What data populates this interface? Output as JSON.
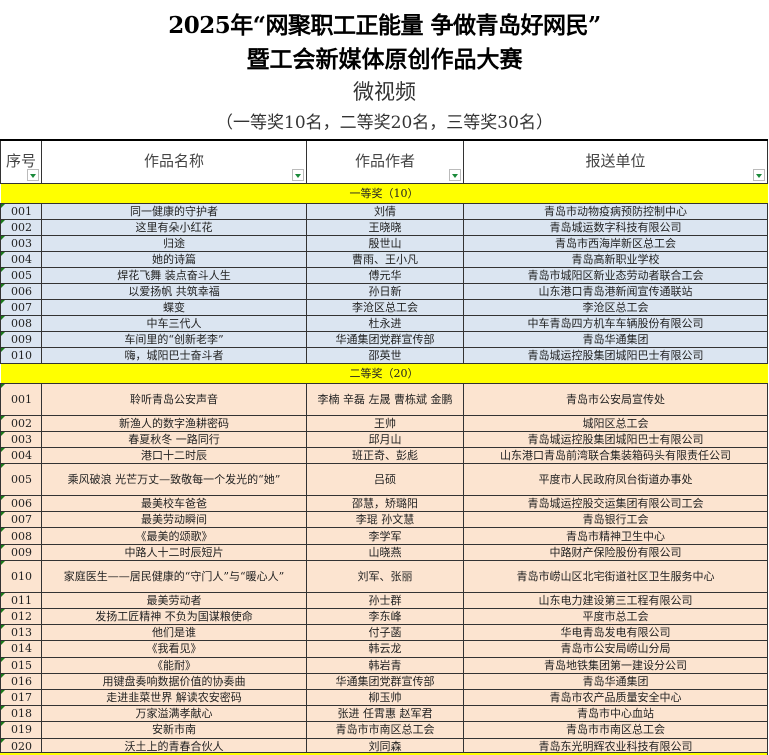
{
  "title": {
    "line1": "2025年“网聚职工正能量 争做青岛好网民”",
    "line2": "暨工会新媒体原创作品大赛",
    "category": "微视频",
    "quota": "（一等奖10名，二等奖20名，三等奖30名）"
  },
  "headers": [
    "序号",
    "作品名称",
    "作品作者",
    "报送单位"
  ],
  "first_prize": {
    "label": "一等奖（10）",
    "rows": [
      [
        "001",
        "同一健康的守护者",
        "刘倩",
        "青岛市动物疫病预防控制中心"
      ],
      [
        "002",
        "这里有朵小红花",
        "王晓晓",
        "青岛城运数字科技有限公司"
      ],
      [
        "003",
        "归途",
        "殷世山",
        "青岛市西海岸新区总工会"
      ],
      [
        "004",
        "她的诗篇",
        "曹雨、王小凡",
        "青岛高新职业学校"
      ],
      [
        "005",
        "焊花飞舞 装点奋斗人生",
        "傅元华",
        "青岛市城阳区新业态劳动者联合工会"
      ],
      [
        "006",
        "以爱扬帆 共筑幸福",
        "孙日新",
        "山东港口青岛港新闻宣传通联站"
      ],
      [
        "007",
        "蝶变",
        "李沧区总工会",
        "李沧区总工会"
      ],
      [
        "008",
        "中车三代人",
        "杜永进",
        "中车青岛四方机车车辆股份有限公司"
      ],
      [
        "009",
        "车间里的“创新老李”",
        "华通集团党群宣传部",
        "青岛华通集团"
      ],
      [
        "010",
        "嗨，城阳巴士奋斗者",
        "邵英世",
        "青岛城运控股集团城阳巴士有限公司"
      ]
    ]
  },
  "second_prize": {
    "label": "二等奖（20）",
    "rows": [
      [
        "001",
        "聆听青岛公安声音",
        "李楠 辛磊 左晟 曹栋斌 金鹏",
        "青岛市公安局宣传处"
      ],
      [
        "002",
        "新渔人的数字渔耕密码",
        "王帅",
        "城阳区总工会"
      ],
      [
        "003",
        "春夏秋冬 一路同行",
        "邱月山",
        "青岛城运控股集团城阳巴士有限公司"
      ],
      [
        "004",
        "港口十二时辰",
        "班正奇、彭彪",
        "山东港口青岛前湾联合集装箱码头有限责任公司"
      ],
      [
        "005",
        "乘风破浪 光芒万丈—致敬每一个发光的“她”",
        "吕硕",
        "平度市人民政府凤台街道办事处"
      ],
      [
        "006",
        "最美校车爸爸",
        "邵慧，矫璐阳",
        "青岛城运控股交运集团有限公司工会"
      ],
      [
        "007",
        "最美劳动瞬间",
        "李琨 孙文慧",
        "青岛银行工会"
      ],
      [
        "008",
        "《最美的颂歌》",
        "李学军",
        "青岛市精神卫生中心"
      ],
      [
        "009",
        "中路人十二时辰短片",
        "山晓燕",
        "中路财产保险股份有限公司"
      ],
      [
        "010",
        "家庭医生——居民健康的“守门人”与“暖心人”",
        "刘军、张丽",
        "青岛市崂山区北宅街道社区卫生服务中心"
      ],
      [
        "011",
        "最美劳动者",
        "孙士群",
        "山东电力建设第三工程有限公司"
      ],
      [
        "012",
        "发扬工匠精神 不负为国谋粮使命",
        "李东峰",
        "平度市总工会"
      ],
      [
        "013",
        "他们是谁",
        "付子菡",
        "华电青岛发电有限公司"
      ],
      [
        "014",
        "《我看见》",
        "韩云龙",
        "青岛市公安局崂山分局"
      ],
      [
        "015",
        "《能耐》",
        "韩岩青",
        "青岛地铁集团第一建设分公司"
      ],
      [
        "016",
        "用键盘奏响数据价值的协奏曲",
        "华通集团党群宣传部",
        "青岛华通集团"
      ],
      [
        "017",
        "走进韭菜世界 解读农安密码",
        "柳玉帅",
        "青岛市农产品质量安全中心"
      ],
      [
        "018",
        "万家溢满孝献心",
        "张进 任霄惠 赵军君",
        "青岛市中心血站"
      ],
      [
        "019",
        "安新市南",
        "青岛市市南区总工会",
        "青岛市市南区总工会"
      ],
      [
        "020",
        "沃土上的青春合伙人",
        "刘同森",
        "青岛东光明辉农业科技有限公司"
      ]
    ]
  }
}
